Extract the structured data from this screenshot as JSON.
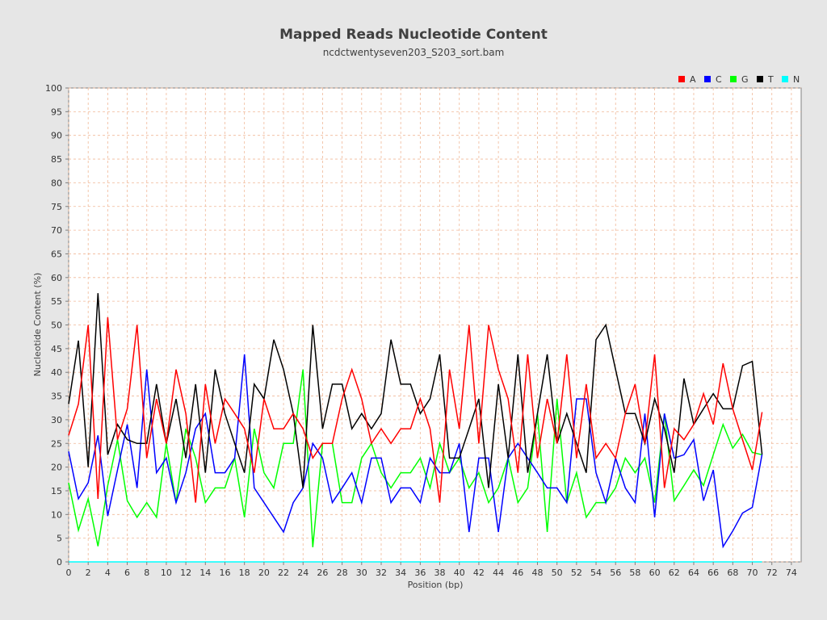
{
  "chart_data": {
    "type": "line",
    "title": "Mapped Reads Nucleotide Content",
    "subtitle": "ncdctwentyseven203_S203_sort.bam",
    "xlabel": "Position (bp)",
    "ylabel": "Nucleotide Content (%)",
    "xlim": [
      0,
      75
    ],
    "ylim": [
      0,
      100
    ],
    "x_ticks": [
      0,
      2,
      4,
      6,
      8,
      10,
      12,
      14,
      16,
      18,
      20,
      22,
      24,
      26,
      28,
      30,
      32,
      34,
      36,
      38,
      40,
      42,
      44,
      46,
      48,
      50,
      52,
      54,
      56,
      58,
      60,
      62,
      64,
      66,
      68,
      70,
      72,
      74
    ],
    "y_ticks": [
      0,
      5,
      10,
      15,
      20,
      25,
      30,
      35,
      40,
      45,
      50,
      55,
      60,
      65,
      70,
      75,
      80,
      85,
      90,
      95,
      100
    ],
    "grid": true,
    "legend_position": "top-right",
    "x": [
      0,
      1,
      2,
      3,
      4,
      5,
      6,
      7,
      8,
      9,
      10,
      11,
      12,
      13,
      14,
      15,
      16,
      17,
      18,
      19,
      20,
      21,
      22,
      23,
      24,
      25,
      26,
      27,
      28,
      29,
      30,
      31,
      32,
      33,
      34,
      35,
      36,
      37,
      38,
      39,
      40,
      41,
      42,
      43,
      44,
      45,
      46,
      47,
      48,
      49,
      50,
      51,
      52,
      53,
      54,
      55,
      56,
      57,
      58,
      59,
      60,
      61,
      62,
      63,
      64,
      65,
      66,
      67,
      68,
      69,
      70,
      71
    ],
    "series": [
      {
        "name": "A",
        "color": "#ff0000",
        "values": [
          26.7,
          33.3,
          50,
          13.3,
          51.6,
          25.8,
          32.3,
          50,
          21.9,
          34.4,
          25,
          40.6,
          31.3,
          12.5,
          37.5,
          25,
          34.4,
          31.3,
          28.1,
          18.8,
          34.4,
          28.1,
          28.1,
          31.3,
          28.1,
          21.9,
          25,
          25,
          34.4,
          40.6,
          34.4,
          25,
          28.1,
          25,
          28.1,
          28.1,
          34.4,
          28.1,
          12.5,
          40.6,
          28.1,
          50,
          25,
          50,
          40.6,
          34.4,
          18.8,
          43.8,
          21.9,
          34.4,
          25,
          43.8,
          21.9,
          37.5,
          21.9,
          25,
          21.9,
          31.3,
          37.5,
          25,
          43.8,
          15.6,
          28.1,
          25.8,
          29,
          35.5,
          29,
          41.9,
          32.3,
          25.8,
          19.4,
          31.6
        ]
      },
      {
        "name": "C",
        "color": "#0000ff",
        "values": [
          23.3,
          13.3,
          16.7,
          26.7,
          9.7,
          19.4,
          29,
          15.6,
          40.6,
          18.8,
          21.9,
          12.5,
          18.8,
          28.1,
          31.3,
          18.8,
          18.8,
          21.9,
          43.8,
          15.6,
          12.5,
          9.4,
          6.3,
          12.5,
          15.6,
          25,
          21.9,
          12.5,
          15.6,
          18.8,
          12.5,
          21.9,
          21.9,
          12.5,
          15.6,
          15.6,
          12.5,
          21.9,
          18.8,
          18.8,
          25,
          6.3,
          21.9,
          21.9,
          6.3,
          21.9,
          25,
          21.9,
          18.8,
          15.6,
          15.6,
          12.5,
          34.4,
          34.4,
          18.8,
          12.5,
          21.9,
          15.6,
          12.5,
          31.3,
          9.4,
          31.3,
          21.9,
          22.6,
          25.8,
          12.9,
          19.4,
          3.2,
          6.5,
          10.3,
          11.5,
          22.7
        ]
      },
      {
        "name": "G",
        "color": "#00ff00",
        "values": [
          16.7,
          6.7,
          13.3,
          3.3,
          16.1,
          25.8,
          12.9,
          9.4,
          12.5,
          9.4,
          25,
          12.5,
          28.1,
          21.9,
          12.5,
          15.6,
          15.6,
          21.9,
          9.4,
          28.1,
          18.8,
          15.6,
          25,
          25,
          40.6,
          3.1,
          25,
          25,
          12.5,
          12.5,
          21.9,
          25,
          18.8,
          15.6,
          18.8,
          18.8,
          21.9,
          15.6,
          25,
          18.8,
          21.9,
          15.6,
          18.8,
          12.5,
          15.6,
          21.9,
          12.5,
          15.6,
          31.3,
          6.3,
          34.4,
          12.5,
          18.8,
          9.4,
          12.5,
          12.5,
          15.6,
          21.9,
          18.8,
          21.9,
          12.5,
          31.3,
          12.9,
          16.1,
          19.4,
          16.1,
          22.6,
          29,
          24,
          26.9,
          23.1,
          22.6
        ]
      },
      {
        "name": "T",
        "color": "#000000",
        "values": [
          33.3,
          46.7,
          20,
          56.7,
          22.6,
          29,
          25.8,
          25,
          25,
          37.5,
          25,
          34.4,
          21.9,
          37.5,
          18.8,
          40.6,
          31.3,
          25,
          18.8,
          37.5,
          34.4,
          46.9,
          40.6,
          31.3,
          15.6,
          50,
          28.1,
          37.5,
          37.5,
          28.1,
          31.3,
          28.1,
          31.3,
          46.9,
          37.5,
          37.5,
          31.3,
          34.4,
          43.8,
          21.9,
          21.9,
          28.1,
          34.4,
          15.6,
          37.5,
          21.9,
          43.8,
          18.8,
          31.3,
          43.8,
          25,
          31.3,
          25,
          18.8,
          46.9,
          50,
          40.6,
          31.3,
          31.3,
          25,
          34.4,
          28.1,
          18.8,
          38.7,
          29,
          32.3,
          35.5,
          32.3,
          32.3,
          41.4,
          42.3,
          22.7
        ]
      },
      {
        "name": "N",
        "color": "#00ffff",
        "values": [
          0,
          0,
          0,
          0,
          0,
          0,
          0,
          0,
          0,
          0,
          0,
          0,
          0,
          0,
          0,
          0,
          0,
          0,
          0,
          0,
          0,
          0,
          0,
          0,
          0,
          0,
          0,
          0,
          0,
          0,
          0,
          0,
          0,
          0,
          0,
          0,
          0,
          0,
          0,
          0,
          0,
          0,
          0,
          0,
          0,
          0,
          0,
          0,
          0,
          0,
          0,
          0,
          0,
          0,
          0,
          0,
          0,
          0,
          0,
          0,
          0,
          0,
          0,
          0,
          0,
          0,
          0,
          0,
          0,
          0,
          0,
          0
        ]
      }
    ]
  }
}
